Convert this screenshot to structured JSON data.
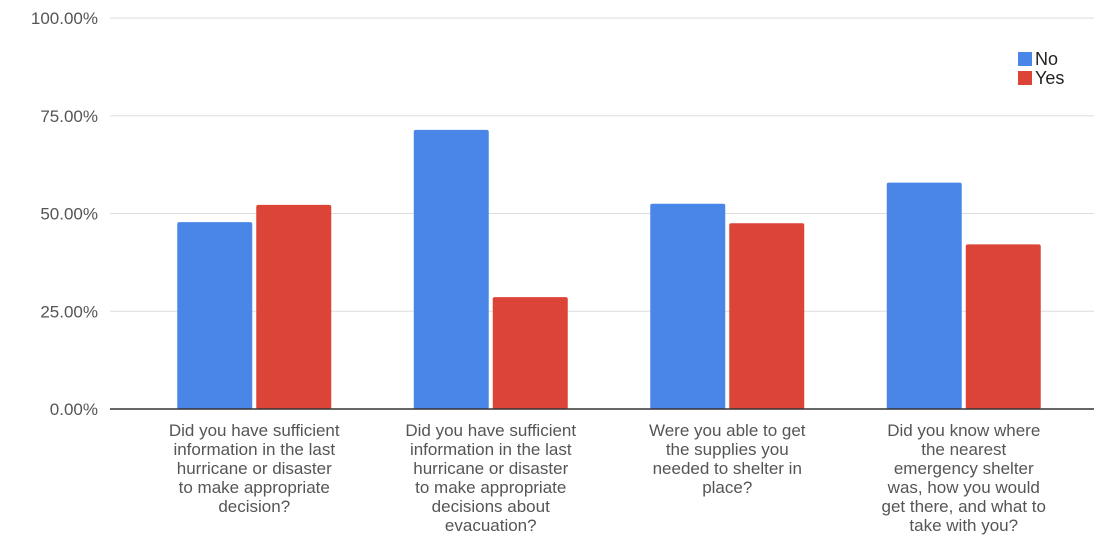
{
  "chart_data": {
    "type": "bar",
    "categories": [
      [
        "Did you have sufficient",
        "information in the last",
        "hurricane or disaster",
        "to make appropriate",
        "decision?"
      ],
      [
        "Did you have sufficient",
        "information in the last",
        "hurricane or disaster",
        "to make appropriate",
        "decisions about",
        "evacuation?"
      ],
      [
        "Were you able to get",
        "the supplies you",
        "needed to shelter in",
        "place?"
      ],
      [
        "Did you know where",
        "the nearest",
        "emergency shelter",
        "was, how you would",
        "get there, and what to",
        "take with you?"
      ]
    ],
    "series": [
      {
        "name": "No",
        "color": "#4a86e8",
        "values": [
          47.8,
          71.4,
          52.5,
          57.9
        ]
      },
      {
        "name": "Yes",
        "color": "#db4437",
        "values": [
          52.2,
          28.6,
          47.5,
          42.1
        ]
      }
    ],
    "y_ticks": [
      "0.00%",
      "25.00%",
      "50.00%",
      "75.00%",
      "100.00%"
    ],
    "ylim": [
      0,
      100
    ],
    "grid": true,
    "legend_position": "top-right",
    "title": "",
    "xlabel": "",
    "ylabel": ""
  }
}
